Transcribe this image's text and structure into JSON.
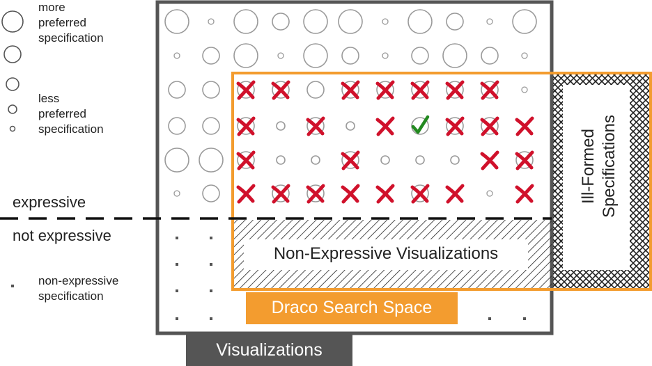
{
  "legend": {
    "more_preferred": "more\npreferred\nspecification",
    "less_preferred": "less\npreferred\nspecification",
    "non_expressive": "non-expressive\nspecification"
  },
  "labels": {
    "expressive": "expressive",
    "not_expressive": "not expressive",
    "non_expressive_visualizations": "Non-Expressive Visualizations",
    "ill_formed": "Ill-Formed\nSpecifications",
    "draco_search_space": "Draco Search Space",
    "visualizations": "Visualizations"
  },
  "colors": {
    "frame_gray": "#555555",
    "circle_gray": "#9a9a9a",
    "draco_orange": "#f39c2f",
    "cross_red": "#d0112b",
    "check_green": "#22891f",
    "dash_black": "#111111"
  },
  "grid": {
    "rows": [
      [
        "L",
        "S",
        "L",
        "M",
        "L",
        "S",
        "L",
        "M",
        "S",
        "L"
      ],
      [
        "S",
        "S",
        "M",
        "T",
        "M",
        "S",
        "M",
        "M",
        "S",
        "M"
      ],
      [
        "M",
        "M",
        "Mx",
        "Mx",
        "M",
        "Sx",
        "Mx",
        "Mx",
        "Sx",
        "T"
      ],
      [
        "S",
        "M",
        "Sx",
        "S",
        "Sx",
        "S",
        "Sx",
        "check",
        "Mx",
        "Mx",
        "Mx"
      ],
      [
        "M",
        "M",
        "Mx",
        "S",
        "S",
        "Mx",
        "S",
        "S",
        "S",
        "Sx",
        "Mx"
      ],
      [
        "T",
        "M",
        "Sx",
        "Mx",
        "Mx",
        "Sx",
        "Sx",
        "Mx",
        "Sx",
        "T",
        "Sx"
      ]
    ]
  }
}
